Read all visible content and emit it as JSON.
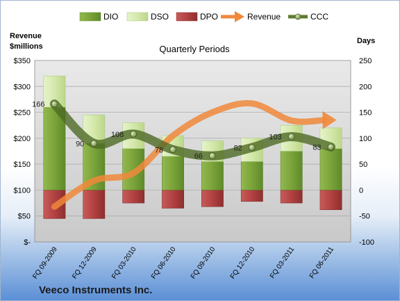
{
  "chart_data": {
    "type": "bar",
    "title": "Quarterly Periods",
    "company": "Veeco Instruments Inc.",
    "left_axis_label_line1": "Revenue",
    "left_axis_label_line2": "$millions",
    "right_axis_label": "Days",
    "categories": [
      "FQ 09-2009",
      "FQ 12-2009",
      "FQ 03-2010",
      "FQ 06-2010",
      "FQ 09-2010",
      "FQ 12-2010",
      "FQ 03-2011",
      "FQ 06-2011"
    ],
    "left_ylim": [
      0,
      350
    ],
    "left_ticks": [
      {
        "value": 0,
        "label": "$-"
      },
      {
        "value": 50,
        "label": "$50"
      },
      {
        "value": 100,
        "label": "$100"
      },
      {
        "value": 150,
        "label": "$150"
      },
      {
        "value": 200,
        "label": "$200"
      },
      {
        "value": 250,
        "label": "$250"
      },
      {
        "value": 300,
        "label": "$300"
      },
      {
        "value": 350,
        "label": "$350"
      }
    ],
    "right_ylim": [
      -100,
      250
    ],
    "right_ticks": [
      {
        "value": -100,
        "label": "-100"
      },
      {
        "value": -50,
        "label": "-50"
      },
      {
        "value": 0,
        "label": "0"
      },
      {
        "value": 50,
        "label": "50"
      },
      {
        "value": 100,
        "label": "100"
      },
      {
        "value": 150,
        "label": "150"
      },
      {
        "value": 200,
        "label": "200"
      },
      {
        "value": 250,
        "label": "250"
      }
    ],
    "legend": [
      {
        "name": "DIO",
        "kind": "bar",
        "color": "#7aa33a"
      },
      {
        "name": "DSO",
        "kind": "bar",
        "color": "#d8ebb3"
      },
      {
        "name": "DPO",
        "kind": "bar",
        "color": "#b84444"
      },
      {
        "name": "Revenue",
        "kind": "arrow",
        "color": "#f0883a"
      },
      {
        "name": "CCC",
        "kind": "line",
        "color": "#5e7a30"
      }
    ],
    "series": [
      {
        "name": "DIO",
        "axis": "days",
        "values": [
          160,
          90,
          80,
          65,
          55,
          55,
          75,
          80
        ]
      },
      {
        "name": "DSO",
        "axis": "days",
        "values": [
          60,
          55,
          50,
          40,
          40,
          45,
          50,
          40
        ]
      },
      {
        "name": "DPO",
        "axis": "days",
        "values": [
          -55,
          -55,
          -25,
          -35,
          -32,
          -22,
          -25,
          -38
        ]
      },
      {
        "name": "Revenue",
        "axis": "revenue",
        "values": [
          68,
          118,
          133,
          205,
          250,
          267,
          234,
          235
        ]
      },
      {
        "name": "CCC",
        "axis": "days",
        "values": [
          166,
          90,
          108,
          78,
          66,
          82,
          103,
          83
        ]
      }
    ],
    "ccc_labels": [
      "166",
      "90",
      "108",
      "78",
      "66",
      "82",
      "103",
      "83"
    ]
  }
}
